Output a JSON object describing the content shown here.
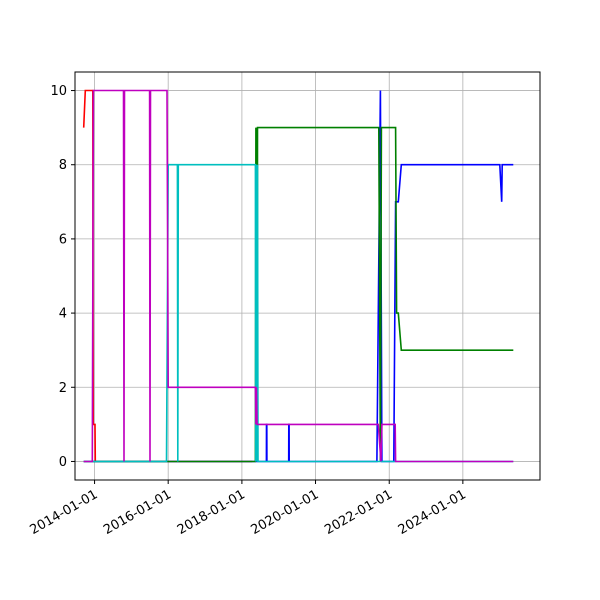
{
  "chart_data": {
    "type": "line",
    "title": "",
    "xlabel": "",
    "ylabel": "",
    "x_axis": "date",
    "xlim": [
      "2013-06-21",
      "2026-02-04"
    ],
    "ylim": [
      -0.5,
      10.5
    ],
    "grid": true,
    "legend": "none",
    "x_ticks": [
      "2014-01-01",
      "2016-01-01",
      "2018-01-01",
      "2020-01-01",
      "2022-01-01",
      "2024-01-01"
    ],
    "y_ticks": [
      0,
      2,
      4,
      6,
      8,
      10
    ],
    "series": [
      {
        "color": "#ff0000",
        "points": [
          [
            "2013-09-15",
            9
          ],
          [
            "2013-10-01",
            10
          ],
          [
            "2013-12-15",
            10
          ],
          [
            "2013-12-18",
            1
          ],
          [
            "2014-01-05",
            1
          ],
          [
            "2014-01-08",
            0
          ],
          [
            "2018-04-15",
            0
          ]
        ]
      },
      {
        "color": "#0000ff",
        "points": [
          [
            "2013-09-15",
            0
          ],
          [
            "2018-05-20",
            0
          ],
          [
            "2018-05-22",
            1
          ],
          [
            "2018-05-26",
            1
          ],
          [
            "2018-05-28",
            0
          ],
          [
            "2018-09-01",
            0
          ],
          [
            "2018-09-02",
            1
          ],
          [
            "2018-09-05",
            1
          ],
          [
            "2018-09-06",
            0
          ],
          [
            "2019-04-10",
            0
          ],
          [
            "2019-04-11",
            1
          ],
          [
            "2019-04-14",
            1
          ],
          [
            "2019-04-15",
            0
          ],
          [
            "2021-09-01",
            0
          ],
          [
            "2021-10-05",
            10
          ],
          [
            "2021-10-20",
            0
          ],
          [
            "2022-02-15",
            0
          ],
          [
            "2022-02-20",
            2
          ],
          [
            "2022-03-05",
            7
          ],
          [
            "2022-04-01",
            7
          ],
          [
            "2022-05-01",
            8
          ],
          [
            "2025-01-01",
            8
          ],
          [
            "2025-01-20",
            7
          ],
          [
            "2025-01-25",
            8
          ],
          [
            "2025-05-15",
            8
          ]
        ]
      },
      {
        "color": "#008000",
        "points": [
          [
            "2013-09-15",
            0
          ],
          [
            "2018-05-15",
            0
          ],
          [
            "2018-05-20",
            9
          ],
          [
            "2018-05-25",
            0
          ],
          [
            "2018-05-28",
            9
          ],
          [
            "2018-06-02",
            0
          ],
          [
            "2018-06-05",
            9
          ],
          [
            "2018-06-10",
            9
          ],
          [
            "2021-09-20",
            9
          ],
          [
            "2021-10-05",
            0
          ],
          [
            "2021-10-15",
            9
          ],
          [
            "2022-03-05",
            9
          ],
          [
            "2022-03-15",
            4
          ],
          [
            "2022-04-01",
            4
          ],
          [
            "2022-05-01",
            3
          ],
          [
            "2025-05-15",
            3
          ]
        ]
      },
      {
        "color": "#00bfbf",
        "points": [
          [
            "2013-09-15",
            0
          ],
          [
            "2015-12-15",
            0
          ],
          [
            "2016-01-01",
            8
          ],
          [
            "2016-04-01",
            8
          ],
          [
            "2016-04-05",
            0
          ],
          [
            "2016-04-10",
            8
          ],
          [
            "2018-05-15",
            8
          ],
          [
            "2018-05-18",
            0
          ],
          [
            "2018-05-25",
            8
          ],
          [
            "2018-06-01",
            0
          ],
          [
            "2018-06-05",
            8
          ],
          [
            "2018-06-10",
            0
          ],
          [
            "2025-05-15",
            0
          ]
        ]
      },
      {
        "color": "#bf00bf",
        "points": [
          [
            "2013-09-15",
            0
          ],
          [
            "2013-12-10",
            0
          ],
          [
            "2013-12-20",
            10
          ],
          [
            "2014-10-15",
            10
          ],
          [
            "2014-10-20",
            0
          ],
          [
            "2014-10-25",
            10
          ],
          [
            "2015-07-01",
            10
          ],
          [
            "2015-07-05",
            0
          ],
          [
            "2015-07-10",
            10
          ],
          [
            "2015-12-20",
            10
          ],
          [
            "2016-01-01",
            2
          ],
          [
            "2018-05-15",
            2
          ],
          [
            "2018-05-20",
            1
          ],
          [
            "2018-05-25",
            2
          ],
          [
            "2018-06-01",
            1
          ],
          [
            "2021-09-15",
            1
          ],
          [
            "2021-10-10",
            0
          ],
          [
            "2021-10-20",
            1
          ],
          [
            "2022-03-01",
            1
          ],
          [
            "2022-03-05",
            0
          ],
          [
            "2025-05-15",
            0
          ]
        ]
      }
    ]
  }
}
